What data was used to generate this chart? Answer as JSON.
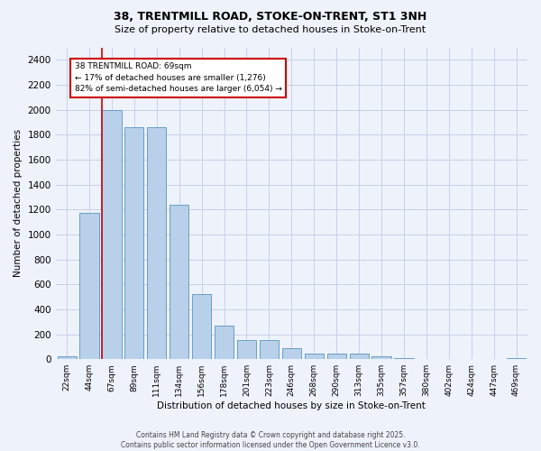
{
  "title_line1": "38, TRENTMILL ROAD, STOKE-ON-TRENT, ST1 3NH",
  "title_line2": "Size of property relative to detached houses in Stoke-on-Trent",
  "xlabel": "Distribution of detached houses by size in Stoke-on-Trent",
  "ylabel": "Number of detached properties",
  "bar_labels": [
    "22sqm",
    "44sqm",
    "67sqm",
    "89sqm",
    "111sqm",
    "134sqm",
    "156sqm",
    "178sqm",
    "201sqm",
    "223sqm",
    "246sqm",
    "268sqm",
    "290sqm",
    "313sqm",
    "335sqm",
    "357sqm",
    "380sqm",
    "402sqm",
    "424sqm",
    "447sqm",
    "469sqm"
  ],
  "bar_values": [
    25,
    1170,
    2000,
    1860,
    1860,
    1240,
    520,
    270,
    155,
    155,
    90,
    45,
    45,
    45,
    20,
    10,
    5,
    5,
    5,
    5,
    10
  ],
  "bar_color": "#b8d0ea",
  "bar_edge_color": "#6a9ec5",
  "annotation_text": "38 TRENTMILL ROAD: 69sqm\n← 17% of detached houses are smaller (1,276)\n82% of semi-detached houses are larger (6,054) →",
  "vline_x": 2.0,
  "vline_color": "#cc0000",
  "annotation_box_edge": "#cc0000",
  "ylim": [
    0,
    2500
  ],
  "yticks": [
    0,
    200,
    400,
    600,
    800,
    1000,
    1200,
    1400,
    1600,
    1800,
    2000,
    2200,
    2400
  ],
  "footer_line1": "Contains HM Land Registry data © Crown copyright and database right 2025.",
  "footer_line2": "Contains public sector information licensed under the Open Government Licence v3.0.",
  "bg_color": "#eef2fb",
  "plot_bg_color": "#eef2fb",
  "grid_color": "#c8d0e8"
}
